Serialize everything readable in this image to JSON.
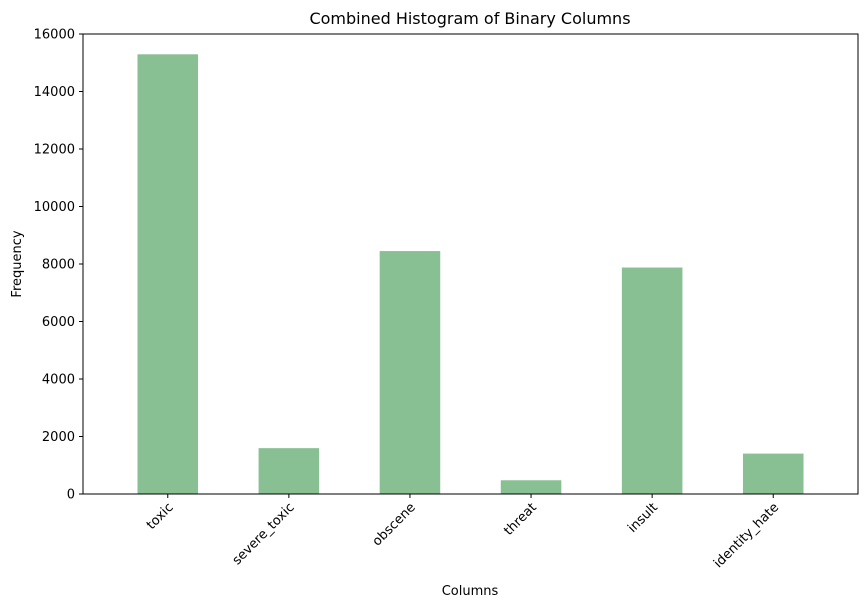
{
  "chart_data": {
    "type": "bar",
    "title": "Combined Histogram of Binary Columns",
    "xlabel": "Columns",
    "ylabel": "Frequency",
    "categories": [
      "toxic",
      "severe_toxic",
      "obscene",
      "threat",
      "insult",
      "identity_hate"
    ],
    "values": [
      15294,
      1595,
      8449,
      478,
      7877,
      1405
    ],
    "ylim": [
      0,
      16000
    ],
    "yticks": [
      0,
      2000,
      4000,
      6000,
      8000,
      10000,
      12000,
      14000,
      16000
    ],
    "grid": false,
    "bar_color": "#88bf93"
  }
}
